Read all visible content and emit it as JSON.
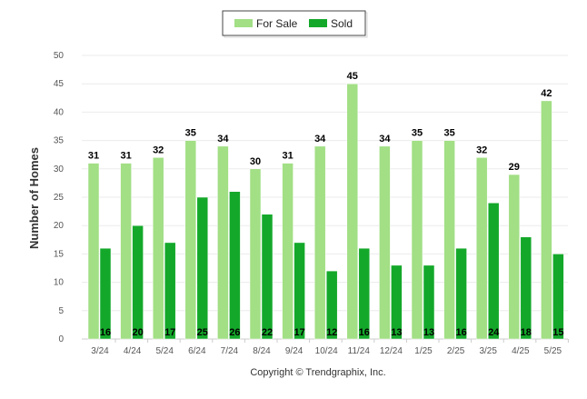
{
  "chart_data": {
    "type": "bar",
    "title": "",
    "xlabel": "",
    "ylabel": "Number of Homes",
    "ylim": [
      0,
      50
    ],
    "yticks": [
      0,
      5,
      10,
      15,
      20,
      25,
      30,
      35,
      40,
      45,
      50
    ],
    "grid": true,
    "legend_position": "top-center",
    "categories": [
      "3/24",
      "4/24",
      "5/24",
      "6/24",
      "7/24",
      "8/24",
      "9/24",
      "10/24",
      "11/24",
      "12/24",
      "1/25",
      "2/25",
      "3/25",
      "4/25",
      "5/25"
    ],
    "series": [
      {
        "name": "For Sale",
        "color": "#a2df85",
        "values": [
          31,
          31,
          32,
          35,
          34,
          30,
          31,
          34,
          45,
          34,
          35,
          35,
          32,
          29,
          42
        ]
      },
      {
        "name": "Sold",
        "color": "#14a82a",
        "values": [
          16,
          20,
          17,
          25,
          26,
          22,
          17,
          12,
          16,
          13,
          13,
          16,
          24,
          18,
          15
        ]
      }
    ]
  },
  "footer": {
    "copyright": "Copyright © Trendgraphix, Inc."
  }
}
